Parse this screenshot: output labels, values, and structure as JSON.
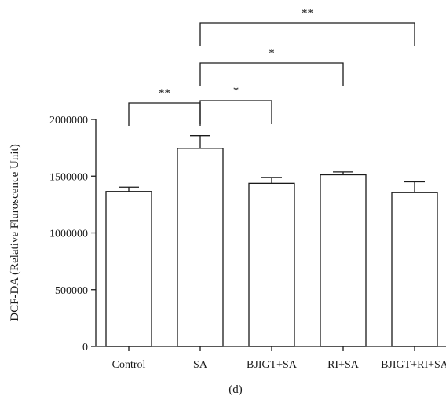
{
  "panel_label": "(d)",
  "chart_data": {
    "type": "bar",
    "title": "",
    "xlabel": "",
    "ylabel": "DCF-DA (Relative Fluroscence Unit)",
    "ylim": [
      0,
      2000000
    ],
    "yticks": [
      "0",
      "500000",
      "1000000",
      "1500000",
      "2000000"
    ],
    "categories": [
      "Control",
      "SA",
      "BJIGT+SA",
      "RI+SA",
      "BJIGT+RI+SA"
    ],
    "values": [
      1365000,
      1745000,
      1437000,
      1512000,
      1355000
    ],
    "errors": [
      38000,
      112000,
      52000,
      25000,
      95000
    ],
    "error_bars": "upper",
    "bar_fill": "#ffffff",
    "bar_stroke": "#1a1a1a",
    "significance": [
      {
        "from": "Control",
        "to": "SA",
        "label": "**"
      },
      {
        "from": "SA",
        "to": "BJIGT+SA",
        "label": "*"
      },
      {
        "from": "SA",
        "to": "RI+SA",
        "label": "*"
      },
      {
        "from": "SA",
        "to": "BJIGT+RI+SA",
        "label": "**"
      }
    ]
  }
}
